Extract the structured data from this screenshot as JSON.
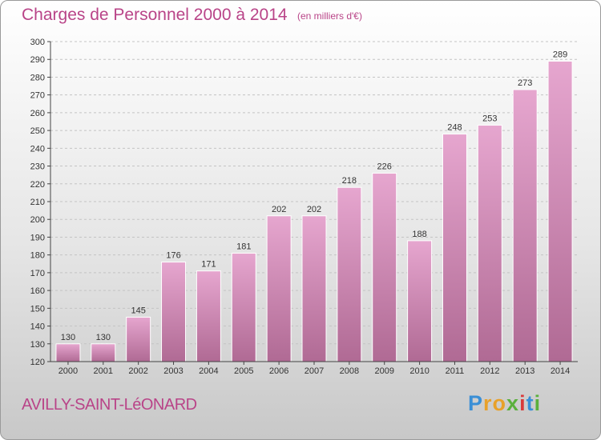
{
  "title": "Charges de Personnel 2000 à 2014",
  "unit_note": "(en milliers d'€)",
  "commune": "AVILLY-SAINT-LéONARD",
  "logo": {
    "letters": [
      "P",
      "r",
      "o",
      "x",
      "i",
      "t",
      "i"
    ],
    "colors": [
      "#3a8fd6",
      "#e8a12a",
      "#e8a12a",
      "#5ab03c",
      "#d93a3a",
      "#3a8fd6",
      "#5ab03c"
    ]
  },
  "colors": {
    "accent": "#b94488",
    "bar_top": "#e6a6cf",
    "bar_bottom": "#b06a94",
    "axis": "#444444",
    "grid": "#c4c4c4"
  },
  "chart_data": {
    "type": "bar",
    "title": "Charges de Personnel 2000 à 2014",
    "xlabel": "",
    "ylabel": "",
    "categories": [
      "2000",
      "2001",
      "2002",
      "2003",
      "2004",
      "2005",
      "2006",
      "2007",
      "2008",
      "2009",
      "2010",
      "2011",
      "2012",
      "2013",
      "2014"
    ],
    "values": [
      130,
      130,
      145,
      176,
      171,
      181,
      202,
      202,
      218,
      226,
      188,
      248,
      253,
      273,
      289
    ],
    "ylim": [
      120,
      300
    ],
    "yticks": [
      120,
      130,
      140,
      150,
      160,
      170,
      180,
      190,
      200,
      210,
      220,
      230,
      240,
      250,
      260,
      270,
      280,
      290,
      300
    ],
    "grid": "horizontal-dashed",
    "legend": "none"
  }
}
